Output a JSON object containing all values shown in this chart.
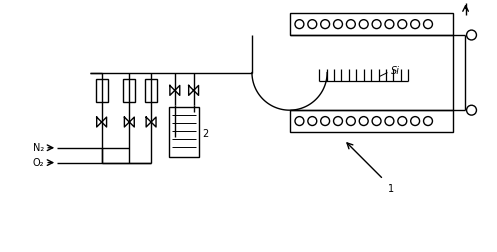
{
  "bg_color": "#ffffff",
  "line_color": "#000000",
  "fig_width": 4.97,
  "fig_height": 2.52,
  "dpi": 100,
  "label_N2": "N₂",
  "label_O2": "O₂",
  "label_Si": "Si",
  "label_1": "1",
  "label_2": "2"
}
